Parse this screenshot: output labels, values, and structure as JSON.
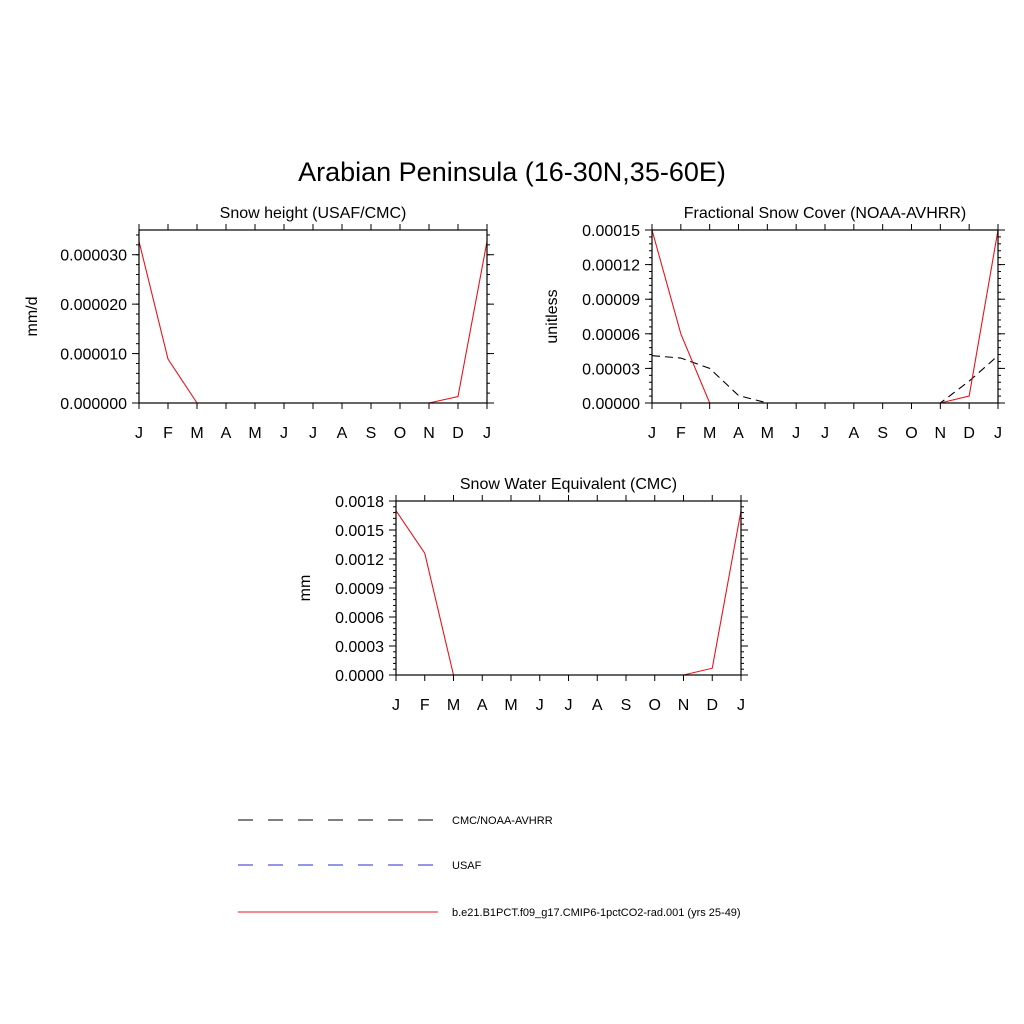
{
  "figure": {
    "title": "Arabian Peninsula (16-30N,35-60E)"
  },
  "legend": {
    "entries": [
      {
        "label": "CMC/NOAA-AVHRR",
        "color": "#000000",
        "dash": "dashed"
      },
      {
        "label": "USAF",
        "color": "#2a2ad0",
        "dash": "dashed"
      },
      {
        "label": "b.e21.B1PCT.f09_g17.CMIP6-1pctCO2-rad.001 (yrs 25-49)",
        "color": "#e8141c",
        "dash": "solid"
      }
    ]
  },
  "chart_data": [
    {
      "type": "line",
      "title": "Snow height (USAF/CMC)",
      "xlabel": "",
      "ylabel": "mm/d",
      "categories": [
        "J",
        "F",
        "M",
        "A",
        "M",
        "J",
        "J",
        "A",
        "S",
        "O",
        "N",
        "D",
        "J"
      ],
      "ylim": [
        0,
        3.5e-05
      ],
      "yticks": [
        0,
        1e-05,
        2e-05,
        3e-05
      ],
      "ytick_labels": [
        "0.000000",
        "0.000010",
        "0.000020",
        "0.000030"
      ],
      "series": [
        {
          "name": "CMC/NOAA-AVHRR",
          "color": "#000000",
          "dash": "dashed",
          "values": [
            0,
            0,
            0,
            0,
            0,
            0,
            0,
            0,
            0,
            0,
            0,
            0,
            0
          ]
        },
        {
          "name": "USAF",
          "color": "#2a2ad0",
          "dash": "dashed",
          "values": [
            0,
            0,
            0,
            0,
            0,
            0,
            0,
            0,
            0,
            0,
            0,
            0,
            0
          ]
        },
        {
          "name": "b.e21.B1PCT.f09_g17.CMIP6-1pctCO2-rad.001 (yrs 25-49)",
          "color": "#e8141c",
          "dash": "solid",
          "values": [
            3.27e-05,
            8.9e-06,
            0,
            0,
            0,
            0,
            0,
            0,
            0,
            0,
            0,
            1.3e-06,
            3.27e-05
          ]
        }
      ]
    },
    {
      "type": "line",
      "title": "Fractional Snow Cover (NOAA-AVHRR)",
      "xlabel": "",
      "ylabel": "unitless",
      "categories": [
        "J",
        "F",
        "M",
        "A",
        "M",
        "J",
        "J",
        "A",
        "S",
        "O",
        "N",
        "D",
        "J"
      ],
      "ylim": [
        0,
        0.00015
      ],
      "yticks": [
        0,
        3e-05,
        6e-05,
        9e-05,
        0.00012,
        0.00015
      ],
      "ytick_labels": [
        "0.00000",
        "0.00003",
        "0.00006",
        "0.00009",
        "0.00012",
        "0.00015"
      ],
      "series": [
        {
          "name": "CMC/NOAA-AVHRR",
          "color": "#000000",
          "dash": "dashed",
          "values": [
            4.1e-05,
            3.9e-05,
            3e-05,
            6.5e-06,
            0,
            0,
            0,
            0,
            0,
            0,
            0,
            1.9e-05,
            4.1e-05
          ]
        },
        {
          "name": "b.e21.B1PCT.f09_g17.CMIP6-1pctCO2-rad.001 (yrs 25-49)",
          "color": "#e8141c",
          "dash": "solid",
          "values": [
            0.00015,
            6e-05,
            0,
            0,
            0,
            0,
            0,
            0,
            0,
            0,
            0,
            6e-06,
            0.00015
          ]
        }
      ]
    },
    {
      "type": "line",
      "title": "Snow Water Equivalent (CMC)",
      "xlabel": "",
      "ylabel": "mm",
      "categories": [
        "J",
        "F",
        "M",
        "A",
        "M",
        "J",
        "J",
        "A",
        "S",
        "O",
        "N",
        "D",
        "J"
      ],
      "ylim": [
        0,
        0.0018
      ],
      "yticks": [
        0,
        0.0003,
        0.0006,
        0.0009,
        0.0012,
        0.0015,
        0.0018
      ],
      "ytick_labels": [
        "0.0000",
        "0.0003",
        "0.0006",
        "0.0009",
        "0.0012",
        "0.0015",
        "0.0018"
      ],
      "series": [
        {
          "name": "CMC/NOAA-AVHRR",
          "color": "#000000",
          "dash": "dashed",
          "values": [
            0,
            0,
            0,
            0,
            0,
            0,
            0,
            0,
            0,
            0,
            0,
            0,
            0
          ]
        },
        {
          "name": "b.e21.B1PCT.f09_g17.CMIP6-1pctCO2-rad.001 (yrs 25-49)",
          "color": "#e8141c",
          "dash": "solid",
          "values": [
            0.0017,
            0.00126,
            0,
            0,
            0,
            0,
            0,
            0,
            0,
            0,
            0,
            7e-05,
            0.0017
          ]
        }
      ]
    }
  ]
}
